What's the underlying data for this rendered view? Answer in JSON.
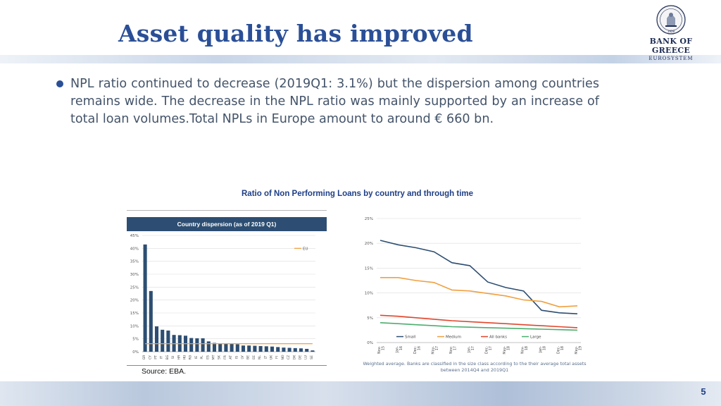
{
  "slide": {
    "title": "Asset quality has improved",
    "bullet": "NPL ratio continued to decrease (2019Q1: 3.1%) but the dispersion among countries remains wide. The decrease in the NPL ratio was mainly supported by an increase of total loan volumes.Total NPLs in Europe amount to around € 660 bn.",
    "chart_heading": "Ratio of Non Performing Loans by country and through time",
    "source": "Source: EBA.",
    "page_number": "5"
  },
  "logo": {
    "bank_name": "BANK OF GREECE",
    "subtitle": "EUROSYSTEM",
    "seal_year": "1928"
  },
  "colors": {
    "title": "#2a4f97",
    "bar": "#2d4e72",
    "eu_line": "#f0a040",
    "small": "#2d4e72",
    "medium": "#f0a040",
    "all_banks": "#e0462c",
    "large": "#4cae6e"
  },
  "chart_data": [
    {
      "type": "bar",
      "title": "Country dispersion (as of 2019 Q1)",
      "categories": [
        "GR",
        "CY",
        "PT",
        "IT",
        "BG",
        "SI",
        "HR",
        "HU",
        "RO",
        "IE",
        "PL",
        "ES",
        "MT",
        "SK",
        "FR",
        "AT",
        "IS",
        "LV",
        "BE",
        "EE",
        "NL",
        "LT",
        "UK",
        "FI",
        "NO",
        "CZ",
        "DK",
        "DE",
        "LU",
        "SE"
      ],
      "series": [
        {
          "name": "",
          "values": [
            41.5,
            23.5,
            9.8,
            8.5,
            8.2,
            6.5,
            6.4,
            6.2,
            5.3,
            5.2,
            5.2,
            4.0,
            3.4,
            3.2,
            3.2,
            3.0,
            2.9,
            2.4,
            2.4,
            2.3,
            2.2,
            2.1,
            2.0,
            1.8,
            1.6,
            1.5,
            1.4,
            1.3,
            1.1,
            0.5
          ]
        },
        {
          "name": "EU",
          "values": [
            3.1,
            3.1,
            3.1,
            3.1,
            3.1,
            3.1,
            3.1,
            3.1,
            3.1,
            3.1,
            3.1,
            3.1,
            3.1,
            3.1,
            3.1,
            3.1,
            3.1,
            3.1,
            3.1,
            3.1,
            3.1,
            3.1,
            3.1,
            3.1,
            3.1,
            3.1,
            3.1,
            3.1,
            3.1,
            3.1
          ]
        }
      ],
      "y_ticks": [
        "0%",
        "5%",
        "10%",
        "15%",
        "20%",
        "25%",
        "30%",
        "35%",
        "40%",
        "45%"
      ],
      "ylim": [
        0,
        45
      ],
      "grid": true,
      "legend": "EU"
    },
    {
      "type": "line",
      "x": [
        "Nov-15",
        "Jan-16",
        "Dec-16",
        "May-17",
        "Nov-17",
        "Jan-17",
        "Dec-17",
        "May-18",
        "Nov-18",
        "Jan-18",
        "Dec-18",
        "May-19"
      ],
      "x_ticks": [
        "Nov-15",
        "Jan-16",
        "Dec-16",
        "May-17",
        "Nov-17",
        "Jan-17",
        "Dec-17",
        "May-18",
        "Nov-18",
        "Jan-18",
        "Dec-18",
        "May-19"
      ],
      "series": [
        {
          "name": "Small",
          "values": [
            20.6,
            19.7,
            19.1,
            18.3,
            16.1,
            15.5,
            12.2,
            11.1,
            10.4,
            6.5,
            6.0,
            5.8
          ]
        },
        {
          "name": "Medium",
          "values": [
            13.1,
            13.1,
            12.5,
            12.1,
            10.6,
            10.4,
            9.9,
            9.4,
            8.6,
            8.3,
            7.2,
            7.4
          ]
        },
        {
          "name": "All banks",
          "values": [
            5.5,
            5.3,
            5.0,
            4.7,
            4.4,
            4.2,
            4.0,
            3.8,
            3.6,
            3.4,
            3.2,
            3.0
          ]
        },
        {
          "name": "Large",
          "values": [
            4.0,
            3.8,
            3.6,
            3.4,
            3.2,
            3.1,
            3.0,
            2.9,
            2.8,
            2.7,
            2.6,
            2.5
          ]
        }
      ],
      "y_ticks": [
        "0%",
        "5%",
        "10%",
        "15%",
        "20%",
        "25%"
      ],
      "ylim": [
        0,
        25
      ],
      "grid": true,
      "legend": "bottom",
      "note": "Weighted average. Banks are classified in the size class according to the their average total assets between 2014Q4 and 2019Q1"
    }
  ]
}
